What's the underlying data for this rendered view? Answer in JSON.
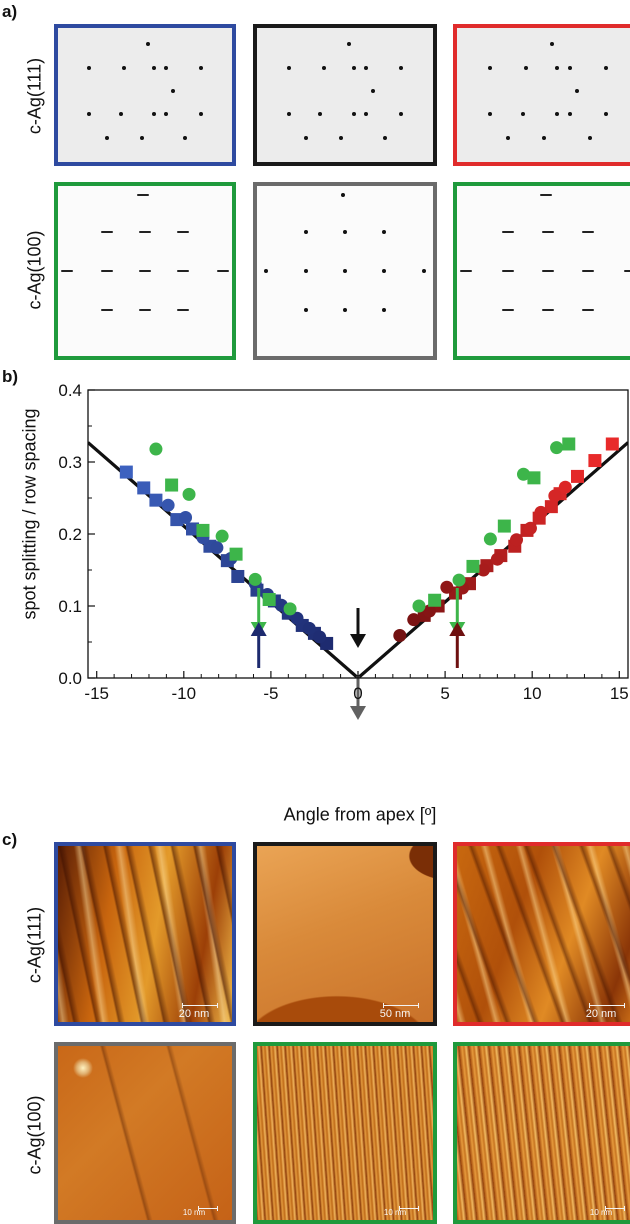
{
  "panel_a": {
    "letter": "a)",
    "row_labels": [
      "c-Ag(111)",
      "c-Ag(100)"
    ],
    "frame_colors": [
      "#2e4aa0",
      "#1a1a1a",
      "#e02b2b",
      "#1f9a3c",
      "#6b6b6b",
      "#1f9a3c"
    ]
  },
  "panel_b": {
    "letter": "b)",
    "colors": {
      "navy": "#1d2a6e",
      "blue": "#3551b0",
      "dark_red": "#6e1010",
      "red": "#e22929",
      "green": "#3db54a",
      "gray_line": "#616161",
      "black_line": "#111111"
    }
  },
  "panel_c": {
    "letter": "c)",
    "row_labels": [
      "c-Ag(111)",
      "c-Ag(100)"
    ],
    "scale_labels": [
      "20 nm",
      "50 nm",
      "20 nm",
      "10 nm",
      "10 nm",
      "10 nm"
    ],
    "frame_colors": [
      "#2e4aa0",
      "#1a1a1a",
      "#e02b2b",
      "#6b6b6b",
      "#1f9a3c",
      "#1f9a3c"
    ]
  },
  "chart_data": {
    "type": "scatter",
    "xlabel": "Angle from apex [º]",
    "ylabel": "spot splitting / row spacing",
    "xlim": [
      -15.5,
      15.5
    ],
    "ylim": [
      0,
      0.4
    ],
    "x_ticks": [
      -15,
      -10,
      -5,
      0,
      5,
      10,
      15
    ],
    "y_ticks": [
      0.0,
      0.1,
      0.2,
      0.3,
      0.4
    ],
    "x_tick_labels": [
      "-15",
      "-10",
      "-5",
      "0",
      "5",
      "10",
      "15"
    ],
    "y_tick_labels": [
      "0.0",
      "0.1",
      "0.2",
      "0.3",
      "0.4"
    ],
    "grid": false,
    "lines": [
      {
        "slope": 0.0211,
        "color": "gray"
      },
      {
        "slope": 0.0211,
        "color": "black"
      }
    ],
    "series": [
      {
        "marker": "square",
        "color": "blue",
        "points": [
          [
            -13.3,
            0.286
          ],
          [
            -12.3,
            0.264
          ],
          [
            -11.6,
            0.247
          ],
          [
            -10.4,
            0.22
          ],
          [
            -9.5,
            0.207
          ],
          [
            -8.5,
            0.183
          ],
          [
            -7.5,
            0.163
          ],
          [
            -6.9,
            0.141
          ],
          [
            -5.8,
            0.122
          ],
          [
            -4.8,
            0.107
          ],
          [
            -4.0,
            0.09
          ],
          [
            -3.2,
            0.073
          ],
          [
            -2.5,
            0.062
          ],
          [
            -1.8,
            0.048
          ]
        ]
      },
      {
        "marker": "circle",
        "color": "blue",
        "points": [
          [
            -10.9,
            0.24
          ],
          [
            -9.9,
            0.223
          ],
          [
            -8.9,
            0.195
          ],
          [
            -8.1,
            0.181
          ],
          [
            -7.3,
            0.166
          ],
          [
            -5.9,
            0.131
          ],
          [
            -5.2,
            0.116
          ],
          [
            -4.4,
            0.101
          ],
          [
            -3.5,
            0.083
          ],
          [
            -2.8,
            0.069
          ],
          [
            -2.2,
            0.057
          ]
        ]
      },
      {
        "marker": "square",
        "color": "red",
        "points": [
          [
            3.8,
            0.087
          ],
          [
            4.6,
            0.1
          ],
          [
            5.6,
            0.118
          ],
          [
            6.4,
            0.131
          ],
          [
            7.4,
            0.156
          ],
          [
            8.2,
            0.17
          ],
          [
            9.0,
            0.183
          ],
          [
            9.7,
            0.205
          ],
          [
            10.4,
            0.222
          ],
          [
            11.1,
            0.238
          ],
          [
            11.6,
            0.256
          ],
          [
            12.6,
            0.28
          ],
          [
            13.6,
            0.302
          ],
          [
            14.6,
            0.325
          ]
        ]
      },
      {
        "marker": "circle",
        "color": "red",
        "points": [
          [
            2.4,
            0.059
          ],
          [
            3.2,
            0.081
          ],
          [
            4.1,
            0.093
          ],
          [
            5.1,
            0.126
          ],
          [
            6.0,
            0.125
          ],
          [
            7.2,
            0.15
          ],
          [
            8.0,
            0.165
          ],
          [
            9.1,
            0.192
          ],
          [
            9.9,
            0.208
          ],
          [
            10.5,
            0.23
          ],
          [
            11.3,
            0.253
          ],
          [
            11.9,
            0.265
          ]
        ]
      },
      {
        "marker": "circle",
        "color": "green",
        "points": [
          [
            -11.6,
            0.318
          ],
          [
            -9.7,
            0.255
          ],
          [
            -7.8,
            0.197
          ],
          [
            -5.9,
            0.137
          ],
          [
            -3.9,
            0.096
          ],
          [
            3.5,
            0.1
          ],
          [
            5.8,
            0.136
          ],
          [
            7.6,
            0.193
          ],
          [
            9.5,
            0.283
          ],
          [
            11.4,
            0.32
          ]
        ]
      },
      {
        "marker": "square",
        "color": "green",
        "points": [
          [
            -10.7,
            0.268
          ],
          [
            -8.9,
            0.205
          ],
          [
            -7.0,
            0.172
          ],
          [
            -5.1,
            0.109
          ],
          [
            4.4,
            0.108
          ],
          [
            6.6,
            0.155
          ],
          [
            8.4,
            0.211
          ],
          [
            10.1,
            0.278
          ],
          [
            12.1,
            0.325
          ]
        ]
      }
    ],
    "arrows": [
      {
        "x": -5.7,
        "color": "green",
        "direction": "down"
      },
      {
        "x": 5.7,
        "color": "green",
        "direction": "down"
      },
      {
        "x": -5.7,
        "color": "navy",
        "direction": "up"
      },
      {
        "x": 5.7,
        "color": "dark_red",
        "direction": "up"
      },
      {
        "x": 0,
        "color": "black",
        "direction": "down"
      },
      {
        "x": 0,
        "color": "gray",
        "direction": "down"
      }
    ]
  }
}
